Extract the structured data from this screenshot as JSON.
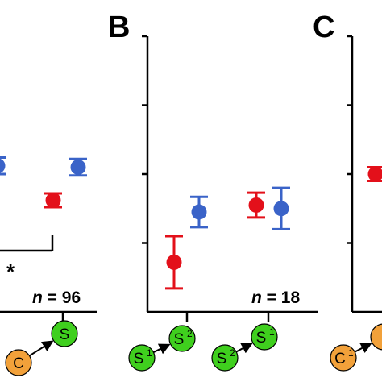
{
  "colors": {
    "red": "#e3101a",
    "blue": "#3a63c8",
    "green_node": "#3fcf1e",
    "orange_node": "#f2a13a",
    "axis": "#000000"
  },
  "chart_data": [
    {
      "type": "scatter",
      "panel": "",
      "ylim": [
        0,
        4
      ],
      "error_bars": true,
      "groups": [
        {
          "label_nodes": [
            {
              "text": "C",
              "sub": "",
              "color": "orange"
            },
            {
              "text": "S",
              "sub": "",
              "color": "green"
            }
          ],
          "points": [
            {
              "series": "red",
              "value": 1.62,
              "err": 0.1
            },
            {
              "series": "blue",
              "value": 2.1,
              "err": 0.12
            }
          ]
        }
      ],
      "extra_points": [
        {
          "series": "blue",
          "value": 2.12,
          "err": 0.12,
          "position": "left-edge"
        }
      ],
      "n_label": {
        "italic": "n",
        "rest": " = 96"
      },
      "significance": "*"
    },
    {
      "type": "scatter",
      "panel": "B",
      "ylim": [
        0,
        4
      ],
      "error_bars": true,
      "groups": [
        {
          "label_nodes": [
            {
              "text": "S",
              "sub": "1",
              "color": "green"
            },
            {
              "text": "S",
              "sub": "2",
              "color": "green"
            }
          ],
          "points": [
            {
              "series": "red",
              "value": 0.72,
              "err": 0.38
            },
            {
              "series": "blue",
              "value": 1.45,
              "err": 0.22
            }
          ]
        },
        {
          "label_nodes": [
            {
              "text": "S",
              "sub": "2",
              "color": "green"
            },
            {
              "text": "S",
              "sub": "1",
              "color": "green"
            }
          ],
          "points": [
            {
              "series": "red",
              "value": 1.55,
              "err": 0.18
            },
            {
              "series": "blue",
              "value": 1.5,
              "err": 0.3
            }
          ]
        }
      ],
      "n_label": {
        "italic": "n",
        "rest": " = 18"
      }
    },
    {
      "type": "scatter",
      "panel": "C",
      "ylim": [
        0,
        4
      ],
      "error_bars": true,
      "groups": [
        {
          "label_nodes": [
            {
              "text": "C",
              "sub": "1",
              "color": "orange"
            },
            {
              "text": "",
              "sub": "",
              "color": "orange"
            }
          ],
          "points": [
            {
              "series": "red",
              "value": 2.0,
              "err": 0.1
            }
          ]
        }
      ]
    }
  ]
}
